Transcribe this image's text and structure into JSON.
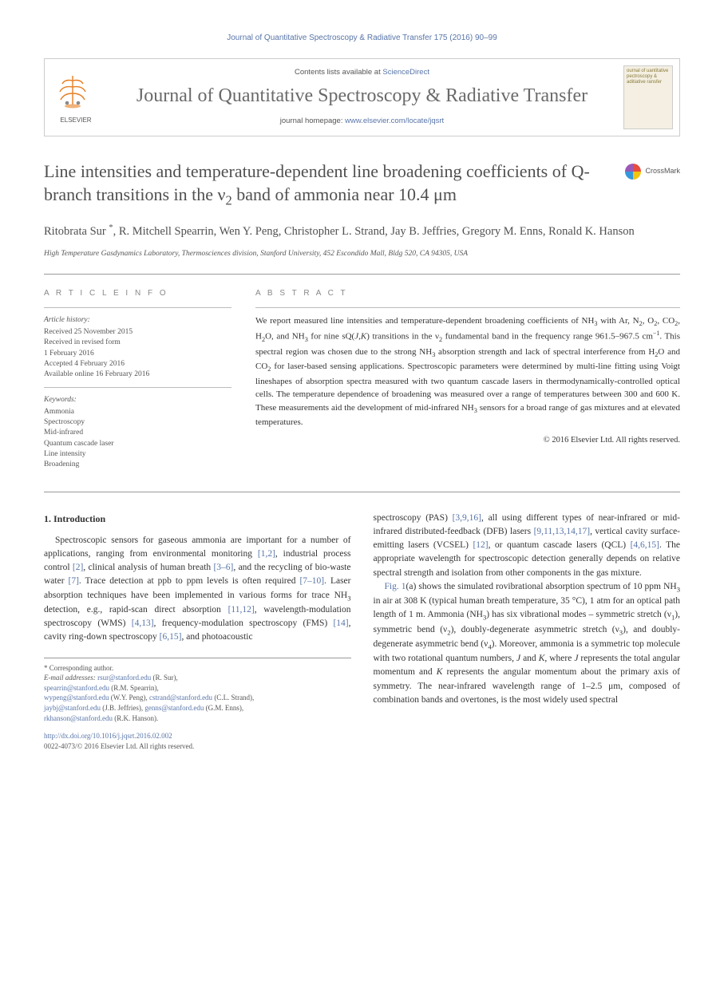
{
  "running_header": "Journal of Quantitative Spectroscopy & Radiative Transfer 175 (2016) 90–99",
  "masthead": {
    "contents_prefix": "Contents lists available at ",
    "contents_link": "ScienceDirect",
    "journal_name": "Journal of Quantitative Spectroscopy & Radiative Transfer",
    "homepage_prefix": "journal homepage: ",
    "homepage_url": "www.elsevier.com/locate/jqsrt",
    "publisher": "ELSEVIER",
    "cover_text": "ournal of uantitative pectroscopy & aditiative ransfer"
  },
  "crossmark_label": "CrossMark",
  "title_html": "Line intensities and temperature-dependent line broadening coefficients of Q-branch transitions in the ν<sub>2</sub> band of ammonia near 10.4 μm",
  "authors_html": "Ritobrata Sur <sup>*</sup>, R. Mitchell Spearrin, Wen Y. Peng, Christopher L. Strand, Jay B. Jeffries, Gregory M. Enns, Ronald K. Hanson",
  "affiliation": "High Temperature Gasdynamics Laboratory, Thermosciences division, Stanford University, 452 Escondido Mall, Bldg 520, CA 94305, USA",
  "info": {
    "heading": "A R T I C L E   I N F O",
    "history_label": "Article history:",
    "history": "Received 25 November 2015\nReceived in revised form\n1 February 2016\nAccepted 4 February 2016\nAvailable online 16 February 2016",
    "keywords_label": "Keywords:",
    "keywords": "Ammonia\nSpectroscopy\nMid-infrared\nQuantum cascade laser\nLine intensity\nBroadening"
  },
  "abstract": {
    "heading": "A B S T R A C T",
    "text_html": "We report measured line intensities and temperature-dependent broadening coefficients of NH<sub>3</sub> with Ar, N<sub>2</sub>, O<sub>2</sub>, CO<sub>2</sub>, H<sub>2</sub>O, and NH<sub>3</sub> for nine sQ(<i>J,K</i>) transitions in the ν<sub>2</sub> fundamental band in the frequency range 961.5–967.5 cm<sup>−1</sup>. This spectral region was chosen due to the strong NH<sub>3</sub> absorption strength and lack of spectral interference from H<sub>2</sub>O and CO<sub>2</sub> for laser-based sensing applications. Spectroscopic parameters were determined by multi-line fitting using Voigt lineshapes of absorption spectra measured with two quantum cascade lasers in thermodynamically-controlled optical cells. The temperature dependence of broadening was measured over a range of temperatures between 300 and 600 K. These measurements aid the development of mid-infrared NH<sub>3</sub> sensors for a broad range of gas mixtures and at elevated temperatures.",
    "copyright": "© 2016 Elsevier Ltd. All rights reserved."
  },
  "section1": {
    "heading": "1. Introduction",
    "p1_html": "Spectroscopic sensors for gaseous ammonia are important for a number of applications, ranging from environmental monitoring <a>[1,2]</a>, industrial process control <a>[2]</a>, clinical analysis of human breath <a>[3–6]</a>, and the recycling of bio-waste water <a>[7]</a>. Trace detection at ppb to ppm levels is often required <a>[7–10]</a>. Laser absorption techniques have been implemented in various forms for trace NH<sub>3</sub> detection, e.g., rapid-scan direct absorption <a>[11,12]</a>, wavelength-modulation spectroscopy (WMS) <a>[4,13]</a>, frequency-modulation spectroscopy (FMS) <a>[14]</a>, cavity ring-down spectroscopy <a>[6,15]</a>, and photoacoustic",
    "p1b_html": "spectroscopy (PAS) <a>[3,9,16]</a>, all using different types of near-infrared or mid-infrared distributed-feedback (DFB) lasers <a>[9,11,13,14,17]</a>, vertical cavity surface-emitting lasers (VCSEL) <a>[12]</a>, or quantum cascade lasers (QCL) <a>[4,6,15]</a>. The appropriate wavelength for spectroscopic detection generally depends on relative spectral strength and isolation from other components in the gas mixture.",
    "p2_html": "<a>Fig. 1</a>(a) shows the simulated rovibrational absorption spectrum of 10 ppm NH<sub>3</sub> in air at 308 K (typical human breath temperature, 35 °C), 1 atm for an optical path length of 1 m. Ammonia (NH<sub>3</sub>) has six vibrational modes – symmetric stretch (ν<sub>1</sub>), symmetric bend (ν<sub>2</sub>), doubly-degenerate asymmetric stretch (ν<sub>3</sub>), and doubly-degenerate asymmetric bend (ν<sub>4</sub>). Moreover, ammonia is a symmetric top molecule with two rotational quantum numbers, <i>J</i> and <i>K</i>, where <i>J</i> represents the total angular momentum and <i>K</i> represents the angular momentum about the primary axis of symmetry. The near-infrared wavelength range of 1–2.5 μm, composed of combination bands and overtones, is the most widely used spectral"
  },
  "footnote": {
    "corr": "* Corresponding author.",
    "email_label": "E-mail addresses: ",
    "emails_html": "<a>rsur@stanford.edu</a> (R. Sur),<br><a>spearrin@stanford.edu</a> (R.M. Spearrin),<br><a>wypeng@stanford.edu</a> (W.Y. Peng), <a>cstrand@stanford.edu</a> (C.L. Strand),<br><a>jaybj@stanford.edu</a> (J.B. Jeffries), <a>genns@stanford.edu</a> (G.M. Enns),<br><a>rkhanson@stanford.edu</a> (R.K. Hanson)."
  },
  "doi": {
    "url": "http://dx.doi.org/10.1016/j.jqsrt.2016.02.002",
    "issn_copy": "0022-4073/© 2016 Elsevier Ltd. All rights reserved."
  },
  "colors": {
    "link": "#5875a8",
    "heading_gray": "#505050",
    "text": "#333333",
    "muted": "#555555",
    "rule": "#999999"
  }
}
